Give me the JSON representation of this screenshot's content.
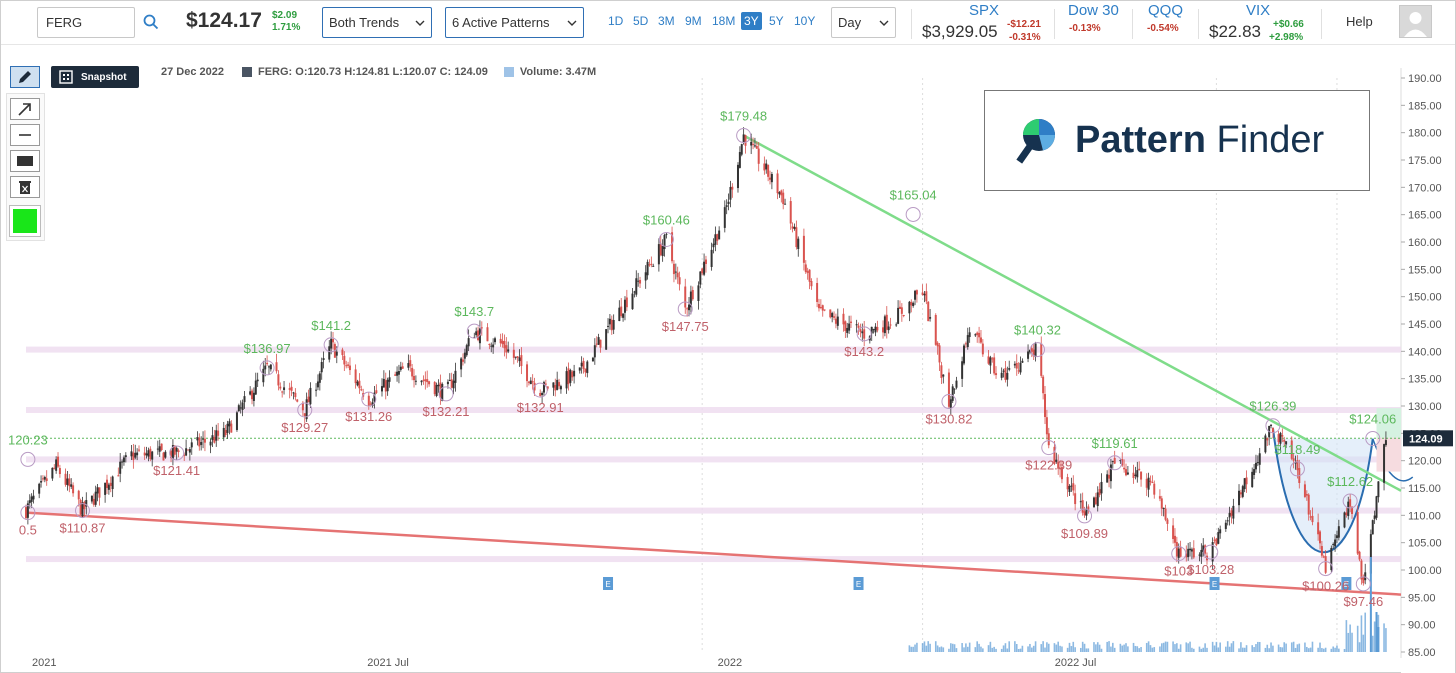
{
  "toolbar": {
    "ticker": "FERG",
    "price": "$124.17",
    "change_abs": "$2.09",
    "change_pct": "1.71%",
    "trend_select": "Both Trends",
    "pattern_select": "6 Active Patterns",
    "ranges": [
      "1D",
      "5D",
      "3M",
      "9M",
      "18M",
      "3Y",
      "5Y",
      "10Y"
    ],
    "active_range": "3Y",
    "interval_select": "Day",
    "help_label": "Help"
  },
  "indices": [
    {
      "name": "SPX",
      "value": "$3,929.05",
      "change_abs": "-$12.21",
      "change_pct": "-0.31%",
      "dir": "down"
    },
    {
      "name": "Dow 30",
      "value": "",
      "change_abs": "-0.13%",
      "change_pct": "",
      "dir": "down"
    },
    {
      "name": "QQQ",
      "value": "",
      "change_abs": "-0.54%",
      "change_pct": "",
      "dir": "down"
    },
    {
      "name": "VIX",
      "value": "$22.83",
      "change_abs": "+$0.66",
      "change_pct": "+2.98%",
      "dir": "up"
    }
  ],
  "tools": {
    "snapshot_label": "Snapshot",
    "icons": [
      "pencil-icon",
      "arrow-icon",
      "line-icon",
      "rectangle-icon",
      "trash-icon"
    ],
    "draw_color": "#19e619"
  },
  "info": {
    "date": "27 Dec 2022",
    "ohlc": "FERG: O:120.73 H:124.81 L:120.07 C: 124.09",
    "volume": "Volume: 3.47M"
  },
  "logo": {
    "text_bold": "Pattern",
    "text_light": " Finder"
  },
  "chart_data": {
    "type": "line",
    "title": "",
    "y_ticks": [
      "190.00",
      "185.00",
      "180.00",
      "175.00",
      "170.00",
      "165.00",
      "160.00",
      "155.00",
      "150.00",
      "145.00",
      "140.00",
      "135.00",
      "130.00",
      "125.00",
      "120.00",
      "115.00",
      "110.00",
      "105.00",
      "100.00",
      "95.00",
      "90.00",
      "85.00"
    ],
    "ylim": [
      85,
      190
    ],
    "x_ticks": [
      "2021",
      "2021 Jul",
      "2022",
      "2022 Jul"
    ],
    "last_price_label": "124.09",
    "price_points": [
      [
        "2021-01-04",
        111
      ],
      [
        "2021-01-20",
        119
      ],
      [
        "2021-02-03",
        110.87
      ],
      [
        "2021-03-01",
        121
      ],
      [
        "2021-03-25",
        121.41
      ],
      [
        "2021-04-20",
        125
      ],
      [
        "2021-05-12",
        136.97
      ],
      [
        "2021-06-01",
        129.27
      ],
      [
        "2021-06-15",
        141.2
      ],
      [
        "2021-07-05",
        131.26
      ],
      [
        "2021-07-25",
        137
      ],
      [
        "2021-08-15",
        132.21
      ],
      [
        "2021-08-30",
        143.7
      ],
      [
        "2021-09-15",
        141
      ],
      [
        "2021-10-04",
        132.91
      ],
      [
        "2021-10-25",
        136
      ],
      [
        "2021-11-20",
        150
      ],
      [
        "2021-12-10",
        160.46
      ],
      [
        "2021-12-20",
        147.75
      ],
      [
        "2022-01-10",
        165
      ],
      [
        "2022-01-20",
        179.48
      ],
      [
        "2022-02-10",
        168
      ],
      [
        "2022-03-01",
        147
      ],
      [
        "2022-03-25",
        143.2
      ],
      [
        "2022-04-10",
        146
      ],
      [
        "2022-04-25",
        151
      ],
      [
        "2022-05-09",
        130.82
      ],
      [
        "2022-05-20",
        144
      ],
      [
        "2022-06-05",
        135
      ],
      [
        "2022-06-25",
        140.32
      ],
      [
        "2022-07-01",
        122.39
      ],
      [
        "2022-07-20",
        109.89
      ],
      [
        "2022-08-05",
        119.61
      ],
      [
        "2022-08-25",
        116
      ],
      [
        "2022-09-08",
        103
      ],
      [
        "2022-09-25",
        103.28
      ],
      [
        "2022-10-10",
        114
      ],
      [
        "2022-10-28",
        126.39
      ],
      [
        "2022-11-10",
        118.49
      ],
      [
        "2022-11-25",
        100.26
      ],
      [
        "2022-12-08",
        112.62
      ],
      [
        "2022-12-15",
        97.46
      ],
      [
        "2022-12-27",
        124.09
      ]
    ],
    "annotations_high": [
      {
        "label": "120.23",
        "date": "2021-01-05",
        "value": 120.23
      },
      {
        "label": "$136.97",
        "date": "2021-05-12",
        "value": 136.97
      },
      {
        "label": "$141.2",
        "date": "2021-06-15",
        "value": 141.2
      },
      {
        "label": "$143.7",
        "date": "2021-08-30",
        "value": 143.7
      },
      {
        "label": "$160.46",
        "date": "2021-12-10",
        "value": 160.46
      },
      {
        "label": "$179.48",
        "date": "2022-01-20",
        "value": 179.48
      },
      {
        "label": "$165.04",
        "date": "2022-04-20",
        "value": 165.04
      },
      {
        "label": "$140.32",
        "date": "2022-06-25",
        "value": 140.32
      },
      {
        "label": "$119.61",
        "date": "2022-08-05",
        "value": 119.61
      },
      {
        "label": "$126.39",
        "date": "2022-10-28",
        "value": 126.39
      },
      {
        "label": "$118.49",
        "date": "2022-11-10",
        "value": 118.49
      },
      {
        "label": "$112.62",
        "date": "2022-12-08",
        "value": 112.62
      },
      {
        "label": "$124.06",
        "date": "2022-12-20",
        "value": 124.06
      }
    ],
    "annotations_low": [
      {
        "label": "0.5",
        "date": "2021-01-05",
        "value": 110.5
      },
      {
        "label": "$110.87",
        "date": "2021-02-03",
        "value": 110.87
      },
      {
        "label": "$121.41",
        "date": "2021-03-25",
        "value": 121.41
      },
      {
        "label": "$129.27",
        "date": "2021-06-01",
        "value": 129.27
      },
      {
        "label": "$131.26",
        "date": "2021-07-05",
        "value": 131.26
      },
      {
        "label": "$132.21",
        "date": "2021-08-15",
        "value": 132.21
      },
      {
        "label": "$132.91",
        "date": "2021-10-04",
        "value": 132.91
      },
      {
        "label": "$147.75",
        "date": "2021-12-20",
        "value": 147.75
      },
      {
        "label": "$143.2",
        "date": "2022-03-25",
        "value": 143.2
      },
      {
        "label": "$130.82",
        "date": "2022-05-09",
        "value": 130.82
      },
      {
        "label": "$122.39",
        "date": "2022-07-01",
        "value": 122.39
      },
      {
        "label": "$109.89",
        "date": "2022-07-20",
        "value": 109.89
      },
      {
        "label": "$103",
        "date": "2022-09-08",
        "value": 103
      },
      {
        "label": "$103.28",
        "date": "2022-09-25",
        "value": 103.28
      },
      {
        "label": "$100.26",
        "date": "2022-11-25",
        "value": 100.26
      },
      {
        "label": "$97.46",
        "date": "2022-12-15",
        "value": 97.46
      }
    ],
    "support_resistance_levels": [
      140.32,
      129.27,
      120.23,
      110.87,
      102
    ],
    "upper_trendline": {
      "from": [
        "2022-01-20",
        179.48
      ],
      "to": [
        "2023-01-04",
        114.5
      ],
      "color": "#7fdc8a"
    },
    "lower_trendline": {
      "from": [
        "2021-01-04",
        110.5
      ],
      "to": [
        "2023-01-04",
        95.5
      ],
      "color": "#e57373"
    },
    "earnings_markers": [
      "2021-11-09",
      "2022-03-22",
      "2022-09-27",
      "2022-12-06"
    ],
    "colors": {
      "up": "#333333",
      "down": "#d9534f",
      "high_label": "#5cb85c",
      "low_label": "#c0616a",
      "level_band": "#eddbef",
      "volume": "#5b9bd5"
    }
  }
}
